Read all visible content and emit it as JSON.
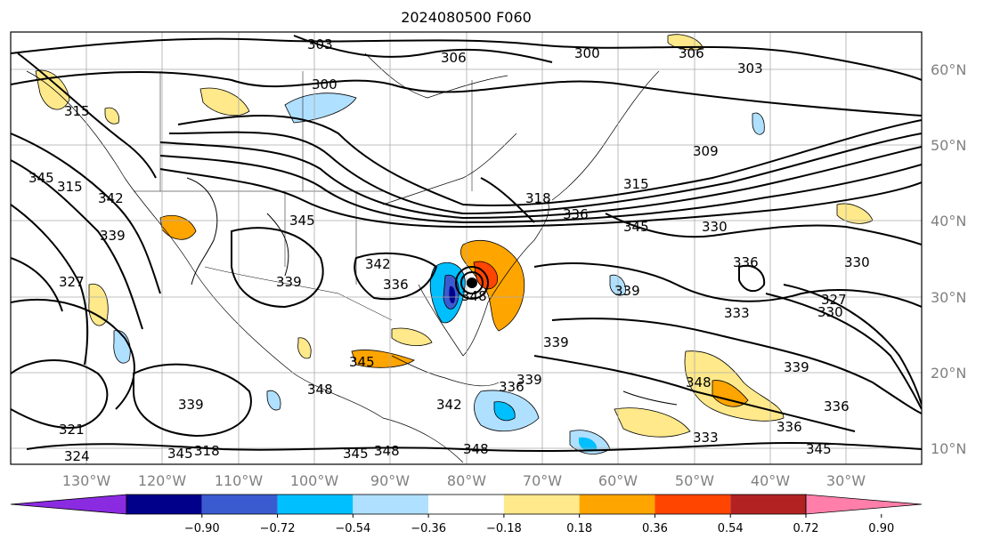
{
  "title": "2024080500 F060",
  "map": {
    "lon_labels": [
      "130°W",
      "120°W",
      "110°W",
      "100°W",
      "90°W",
      "80°W",
      "70°W",
      "60°W",
      "50°W",
      "40°W",
      "30°W"
    ],
    "lat_labels": [
      "60°N",
      "50°N",
      "40°N",
      "30°N",
      "20°N",
      "10°N"
    ],
    "contour_labels": [
      "303",
      "300",
      "306",
      "306",
      "303",
      "300",
      "309",
      "315",
      "318",
      "336",
      "330",
      "336",
      "330",
      "327",
      "330",
      "333",
      "339",
      "339",
      "336",
      "336",
      "333",
      "345",
      "348",
      "348",
      "345",
      "342",
      "339",
      "345",
      "342",
      "348",
      "339",
      "336",
      "345",
      "348",
      "339",
      "345",
      "318",
      "321",
      "324",
      "327",
      "315",
      "315",
      "345",
      "342",
      "339",
      "336",
      "339",
      "345",
      "348"
    ]
  },
  "colorbar": {
    "ticks": [
      "−0.90",
      "−0.72",
      "−0.54",
      "−0.36",
      "−0.18",
      "0.18",
      "0.36",
      "0.54",
      "0.72",
      "0.90"
    ],
    "colors": [
      "#8a2be2",
      "#00008b",
      "#3a5bd0",
      "#00bfff",
      "#b0e0ff",
      "#ffffff",
      "#ffe98a",
      "#ffa500",
      "#ff4500",
      "#b22222",
      "#ff7faa"
    ]
  }
}
